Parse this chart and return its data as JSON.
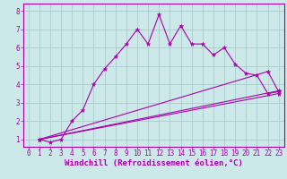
{
  "background_color": "#cce8e8",
  "grid_color": "#aacccc",
  "line_color": "#aa00aa",
  "x_label": "Windchill (Refroidissement éolien,°C)",
  "x_ticks": [
    0,
    1,
    2,
    3,
    4,
    5,
    6,
    7,
    8,
    9,
    10,
    11,
    12,
    13,
    14,
    15,
    16,
    17,
    18,
    19,
    20,
    21,
    22,
    23
  ],
  "y_ticks": [
    1,
    2,
    3,
    4,
    5,
    6,
    7,
    8
  ],
  "xlim": [
    -0.5,
    23.5
  ],
  "ylim": [
    0.6,
    8.4
  ],
  "line1_x": [
    1,
    2,
    3,
    4,
    5,
    6,
    7,
    8,
    9,
    10,
    11,
    12,
    13,
    14,
    15,
    16,
    17,
    18,
    19,
    20,
    21,
    22,
    23
  ],
  "line1_y": [
    1.0,
    0.85,
    1.0,
    2.0,
    2.6,
    4.0,
    4.85,
    5.5,
    6.2,
    7.0,
    6.2,
    7.8,
    6.2,
    7.2,
    6.2,
    6.2,
    5.6,
    6.0,
    5.1,
    4.6,
    4.5,
    3.5,
    3.6
  ],
  "line2_x": [
    1,
    22,
    23
  ],
  "line2_y": [
    1.0,
    4.7,
    3.6
  ],
  "line3_x": [
    1,
    23
  ],
  "line3_y": [
    1.0,
    3.65
  ],
  "line4_x": [
    1,
    23
  ],
  "line4_y": [
    1.0,
    3.5
  ],
  "tick_fontsize": 5.5,
  "label_fontsize": 6.5
}
